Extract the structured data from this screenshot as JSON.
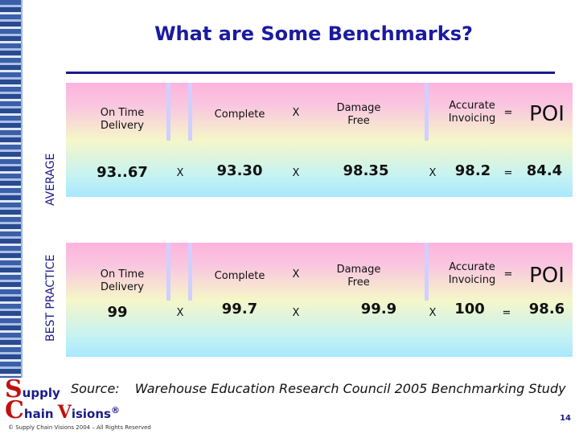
{
  "title": "What are Some Benchmarks?",
  "rows": [
    {
      "side_label": "AVERAGE",
      "labels": [
        "On Time Delivery",
        "Complete",
        "Damage Free",
        "Accurate Invoicing",
        "POI"
      ],
      "values": [
        "93..67",
        "93.30",
        "98.35",
        "98.2",
        "84.4"
      ],
      "ops_label_row": [
        "X",
        "X",
        "="
      ],
      "ops_value_row": [
        "X",
        "X",
        "X",
        "="
      ]
    },
    {
      "side_label": "BEST PRACTICE",
      "labels": [
        "On Time Delivery",
        "Complete",
        "Damage Free",
        "Accurate Invoicing",
        "POI"
      ],
      "values": [
        "99",
        "99.7",
        "99.9",
        "100",
        "98.6"
      ],
      "ops_label_row": [
        "X",
        "X",
        "="
      ],
      "ops_value_row": [
        "X",
        "X",
        "X",
        "="
      ]
    }
  ],
  "source": {
    "label": "Source:",
    "text": "Warehouse Education Research Council 2005 Benchmarking Study"
  },
  "logo": {
    "s": "S",
    "upply": "upply",
    "c": "C",
    "hain": "hain ",
    "v": "V",
    "isions": "isions",
    "reg": "®"
  },
  "copyright": "© Supply Chain Visions 2004 – All Rights Reserved",
  "page_number": "14",
  "colors": {
    "title": "#1a1aa0",
    "rule": "#1a1a8a",
    "logo_red": "#c01010"
  }
}
